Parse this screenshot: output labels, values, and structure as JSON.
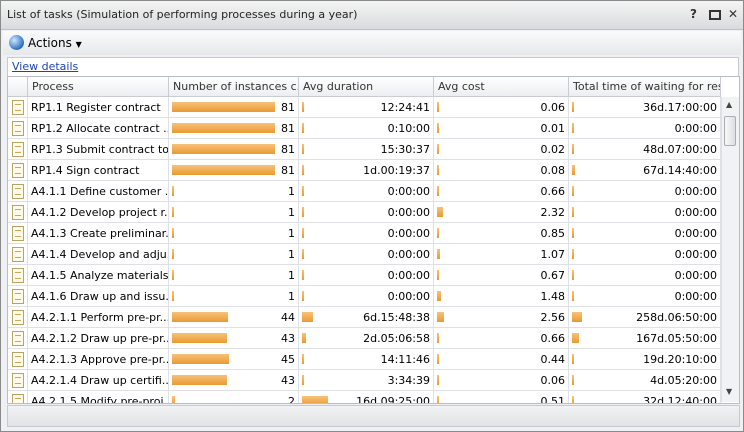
{
  "window": {
    "title": "List of tasks (Simulation of performing processes during a year)"
  },
  "toolbar": {
    "actions": "Actions"
  },
  "link": "View details",
  "table": {
    "columns": [
      "Process",
      "Number of instances c...",
      "Avg duration",
      "Avg cost",
      "Total time of waiting for res..."
    ],
    "rows": [
      [
        "RP1.1 Register contract",
        81,
        "12:24:41",
        0.06,
        "36d.17:00:00"
      ],
      [
        "RP1.2 Allocate contract ...",
        81,
        "0:10:00",
        0.01,
        "0:00:00"
      ],
      [
        "RP1.3 Submit contract to...",
        81,
        "15:30:37",
        0.02,
        "48d.07:00:00"
      ],
      [
        "RP1.4 Sign contract",
        81,
        "1d.00:19:37",
        0.08,
        "67d.14:40:00"
      ],
      [
        "A4.1.1 Define customer ...",
        1,
        "0:00:00",
        0.66,
        "0:00:00"
      ],
      [
        "A4.1.2 Develop project r...",
        1,
        "0:00:00",
        2.32,
        "0:00:00"
      ],
      [
        "A4.1.3 Create preliminar...",
        1,
        "0:00:00",
        0.85,
        "0:00:00"
      ],
      [
        "A4.1.4 Develop and adju...",
        1,
        "0:00:00",
        1.07,
        "0:00:00"
      ],
      [
        "A4.1.5 Analyze materials...",
        1,
        "0:00:00",
        0.67,
        "0:00:00"
      ],
      [
        "A4.1.6 Draw up and issu...",
        1,
        "0:00:00",
        1.48,
        "0:00:00"
      ],
      [
        "A4.2.1.1 Perform pre-pr...",
        44,
        "6d.15:48:38",
        2.56,
        "258d.06:50:00"
      ],
      [
        "A4.2.1.2 Draw up pre-pr...",
        43,
        "2d.05:06:58",
        0.66,
        "167d.05:50:00"
      ],
      [
        "A4.2.1.3 Approve pre-pr...",
        45,
        "14:11:46",
        0.44,
        "19d.20:10:00"
      ],
      [
        "A4.2.1.4 Draw up certifi...",
        43,
        "3:34:39",
        0.06,
        "4d.05:20:00"
      ],
      [
        "A4.2.1.5 Modify pre-proj...",
        2,
        "16d.09:25:00",
        0.51,
        "32d.12:40:00"
      ]
    ]
  }
}
